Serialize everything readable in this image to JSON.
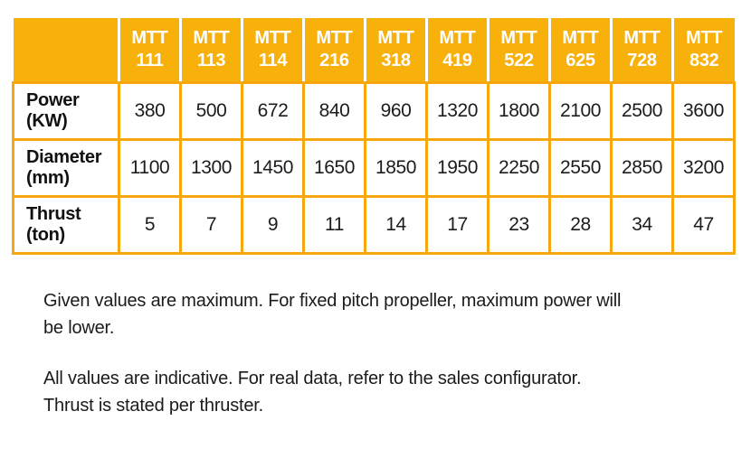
{
  "colors": {
    "header_background": "#F8B00A",
    "grid_lines": "#F5A70D",
    "header_text": "#FFFFFF",
    "body_text": "#1C1C1C"
  },
  "table": {
    "columns": [
      {
        "prefix": "MTT",
        "model": "111"
      },
      {
        "prefix": "MTT",
        "model": "113"
      },
      {
        "prefix": "MTT",
        "model": "114"
      },
      {
        "prefix": "MTT",
        "model": "216"
      },
      {
        "prefix": "MTT",
        "model": "318"
      },
      {
        "prefix": "MTT",
        "model": "419"
      },
      {
        "prefix": "MTT",
        "model": "522"
      },
      {
        "prefix": "MTT",
        "model": "625"
      },
      {
        "prefix": "MTT",
        "model": "728"
      },
      {
        "prefix": "MTT",
        "model": "832"
      }
    ],
    "rows": [
      {
        "label": "Power",
        "unit": "(KW)",
        "values": [
          "380",
          "500",
          "672",
          "840",
          "960",
          "1320",
          "1800",
          "2100",
          "2500",
          "3600"
        ]
      },
      {
        "label": "Diameter",
        "unit": "(mm)",
        "values": [
          "1100",
          "1300",
          "1450",
          "1650",
          "1850",
          "1950",
          "2250",
          "2550",
          "2850",
          "3200"
        ]
      },
      {
        "label": "Thrust",
        "unit": "(ton)",
        "values": [
          "5",
          "7",
          "9",
          "11",
          "14",
          "17",
          "23",
          "28",
          "34",
          "47"
        ]
      }
    ]
  },
  "notes": [
    {
      "line1": "Given values are maximum. For fixed pitch propeller, maximum power will",
      "line2": "be lower."
    },
    {
      "line1": "All values are indicative. For real data, refer to the sales configurator.",
      "line2": "Thrust is stated per thruster."
    }
  ]
}
